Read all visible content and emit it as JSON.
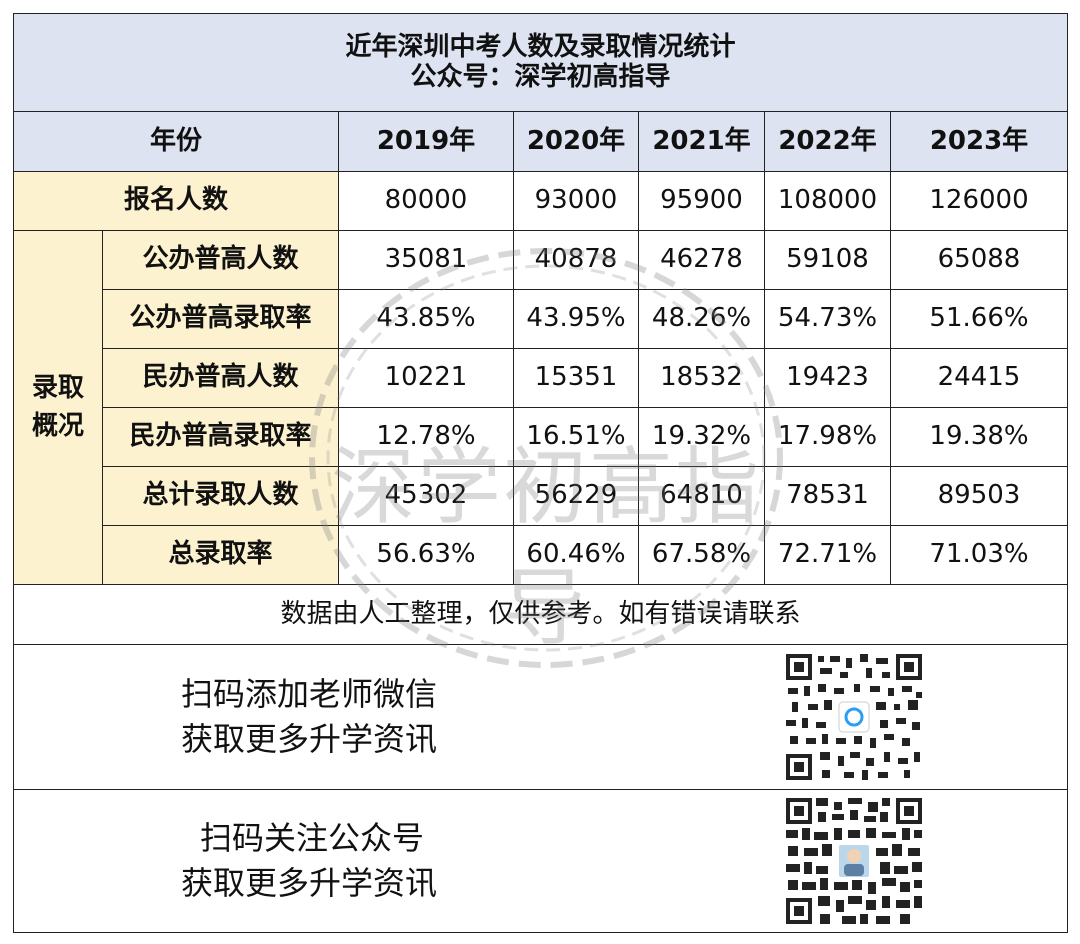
{
  "title": {
    "line1": "近年深圳中考人数及录取情况统计",
    "line2": "公众号：深学初高指导"
  },
  "header": {
    "year_label": "年份",
    "years": [
      "2019年",
      "2020年",
      "2021年",
      "2022年",
      "2023年"
    ]
  },
  "registration": {
    "label": "报名人数",
    "values": [
      "80000",
      "93000",
      "95900",
      "108000",
      "126000"
    ]
  },
  "admission": {
    "group_label": "录取概况",
    "rows": [
      {
        "label": "公办普高人数",
        "values": [
          "35081",
          "40878",
          "46278",
          "59108",
          "65088"
        ]
      },
      {
        "label": "公办普高录取率",
        "values": [
          "43.85%",
          "43.95%",
          "48.26%",
          "54.73%",
          "51.66%"
        ]
      },
      {
        "label": "民办普高人数",
        "values": [
          "10221",
          "15351",
          "18532",
          "19423",
          "24415"
        ]
      },
      {
        "label": "民办普高录取率",
        "values": [
          "12.78%",
          "16.51%",
          "19.32%",
          "17.98%",
          "19.38%"
        ]
      },
      {
        "label": "总计录取人数",
        "values": [
          "45302",
          "56229",
          "64810",
          "78531",
          "89503"
        ]
      },
      {
        "label": "总录取率",
        "values": [
          "56.63%",
          "60.46%",
          "67.58%",
          "72.71%",
          "71.03%"
        ]
      }
    ]
  },
  "note": "数据由人工整理，仅供参考。如有错误请联系",
  "promo": {
    "wechat": {
      "line1": "扫码添加老师微信",
      "line2": "获取更多升学资讯"
    },
    "official": {
      "line1": "扫码关注公众号",
      "line2": "获取更多升学资讯"
    }
  },
  "watermark": "深学初高指导",
  "colors": {
    "header_bg": "#dde3f1",
    "label_bg": "#fdf2d0",
    "border": "#222222"
  }
}
